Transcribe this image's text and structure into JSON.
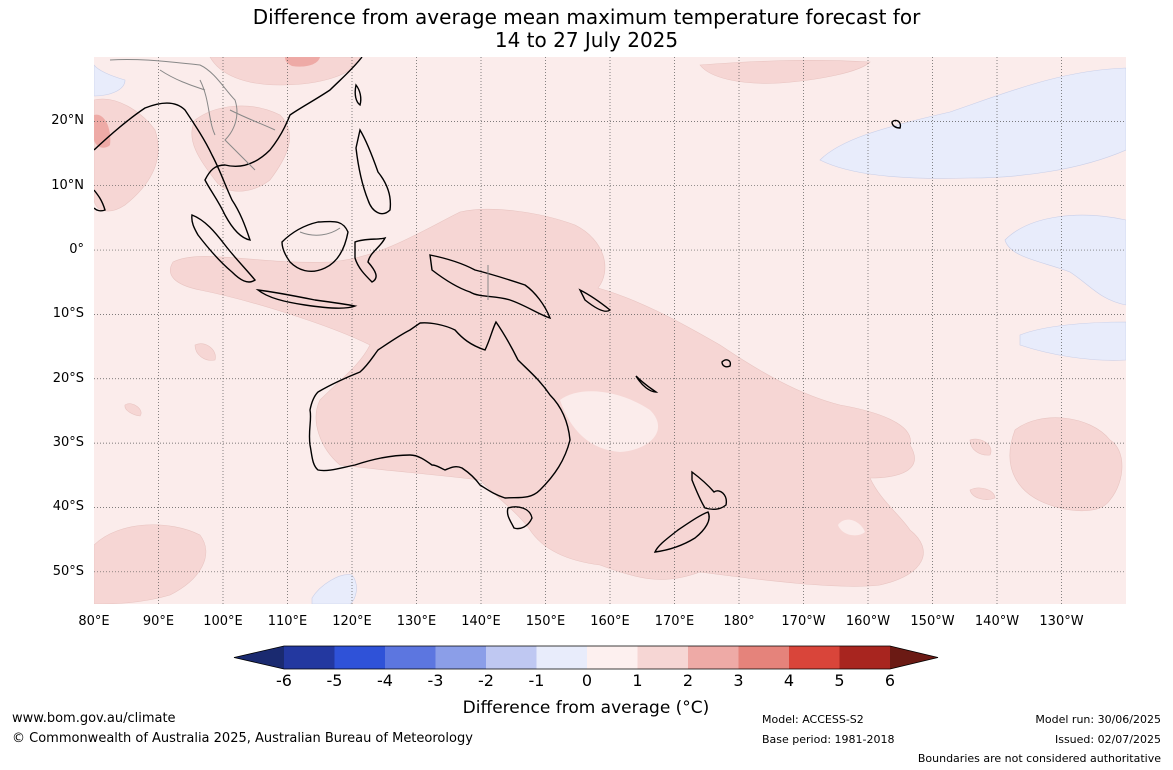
{
  "title_line1": "Difference from average mean maximum temperature forecast for",
  "title_line2": "14 to 27 July 2025",
  "map": {
    "lon_min": 80,
    "lon_max": 240,
    "lat_min": -55,
    "lat_max": 30,
    "lat_ticks": [
      {
        "lat": 20,
        "label": "20°N"
      },
      {
        "lat": 10,
        "label": "10°N"
      },
      {
        "lat": 0,
        "label": "0°"
      },
      {
        "lat": -10,
        "label": "10°S"
      },
      {
        "lat": -20,
        "label": "20°S"
      },
      {
        "lat": -30,
        "label": "30°S"
      },
      {
        "lat": -40,
        "label": "40°S"
      },
      {
        "lat": -50,
        "label": "50°S"
      }
    ],
    "lon_ticks": [
      {
        "lon": 80,
        "label": "80°E"
      },
      {
        "lon": 90,
        "label": "90°E"
      },
      {
        "lon": 100,
        "label": "100°E"
      },
      {
        "lon": 110,
        "label": "110°E"
      },
      {
        "lon": 120,
        "label": "120°E"
      },
      {
        "lon": 130,
        "label": "130°E"
      },
      {
        "lon": 140,
        "label": "140°E"
      },
      {
        "lon": 150,
        "label": "150°E"
      },
      {
        "lon": 160,
        "label": "160°E"
      },
      {
        "lon": 170,
        "label": "170°E"
      },
      {
        "lon": 180,
        "label": "180°"
      },
      {
        "lon": 190,
        "label": "170°W"
      },
      {
        "lon": 200,
        "label": "160°W"
      },
      {
        "lon": 210,
        "label": "150°W"
      },
      {
        "lon": 220,
        "label": "140°W"
      },
      {
        "lon": 230,
        "label": "130°W"
      }
    ],
    "background_color": "#fbeceb",
    "colors": {
      "plus1_2": "#f6d6d4",
      "plus2_3": "#eeaaa6",
      "minus1_0": "#e8ecfb",
      "coast": "#000000",
      "border": "#888888"
    }
  },
  "colorbar": {
    "labels": [
      "-6",
      "-5",
      "-4",
      "-3",
      "-2",
      "-1",
      "0",
      "1",
      "2",
      "3",
      "4",
      "5",
      "6"
    ],
    "colors": [
      "#2338a0",
      "#2f52d8",
      "#5c76e0",
      "#8b9ee8",
      "#bfc8f2",
      "#e8ecfb",
      "#fdf0ef",
      "#f6d6d4",
      "#eeaaa6",
      "#e5837b",
      "#d9453a",
      "#a8251f"
    ],
    "low_extend_color": "#1a2a70",
    "high_extend_color": "#6b1a14",
    "title": "Difference from average (°C)"
  },
  "footer": {
    "website": "www.bom.gov.au/climate",
    "copyright": "© Commonwealth of Australia 2025, Australian Bureau of Meteorology",
    "model": "Model: ACCESS-S2",
    "base_period": "Base period: 1981-2018",
    "model_run": "Model run: 30/06/2025",
    "issued": "Issued: 02/07/2025",
    "disclaimer": "Boundaries are not considered authoritative"
  }
}
